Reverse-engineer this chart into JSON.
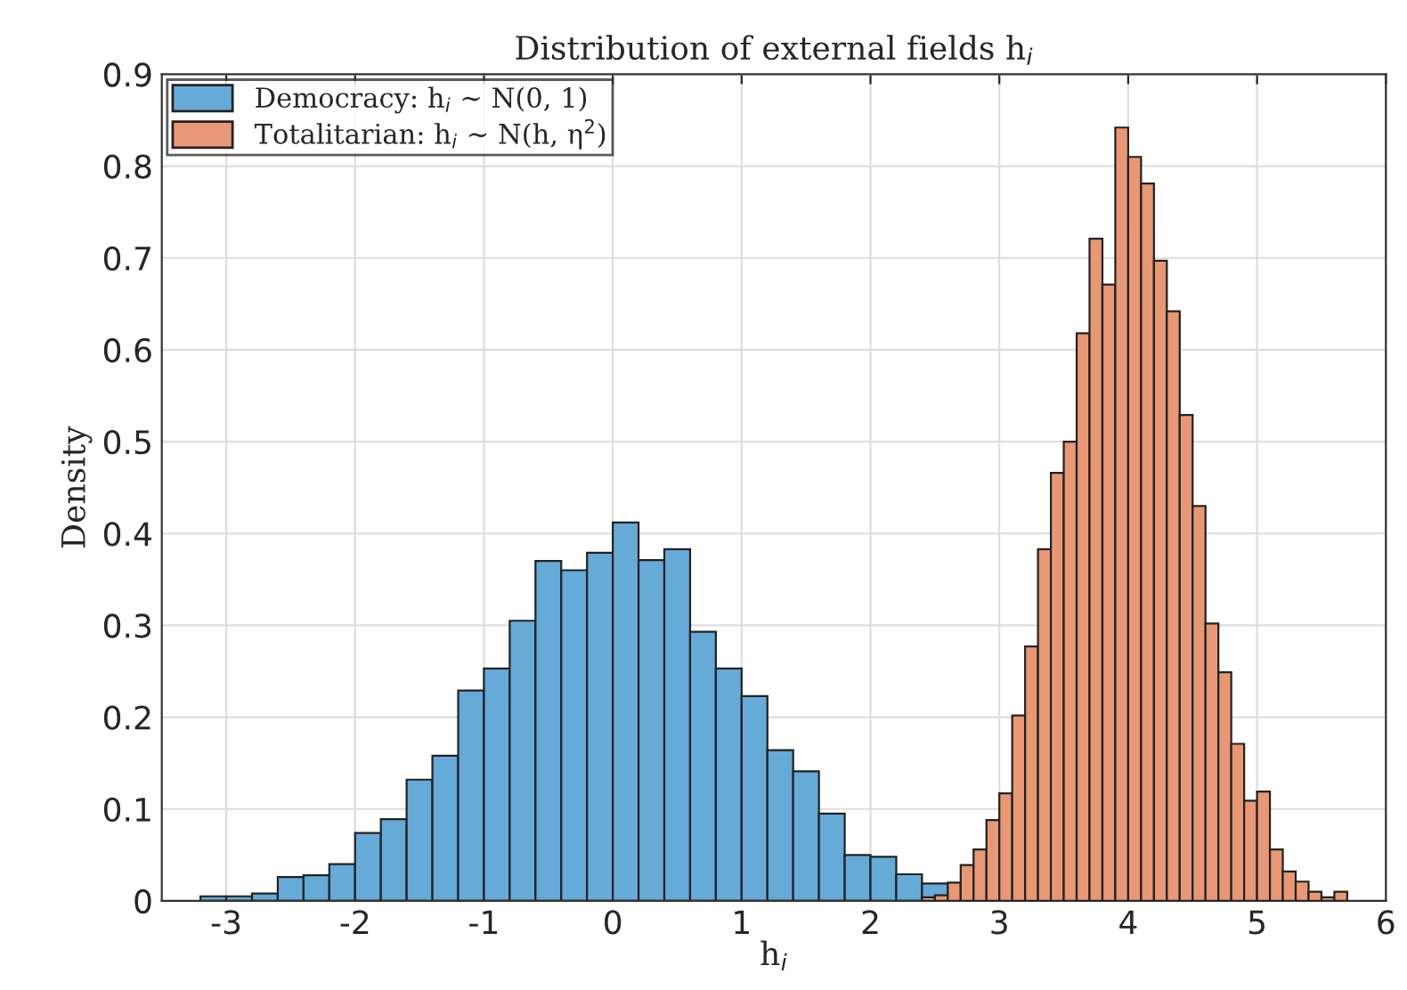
{
  "chart_data": {
    "type": "bar",
    "title": "Distribution of external fields h$_{i}$",
    "xlabel": "h$_{i}$",
    "ylabel": "Density",
    "series": [
      {
        "name": "Democracy: h$_{i}$ ∼ N(0, 1)",
        "color": "#66aad7",
        "x": [
          -3.1,
          -2.9,
          -2.7,
          -2.5,
          -2.3,
          -2.1,
          -1.9,
          -1.7,
          -1.5,
          -1.3,
          -1.1,
          -0.9,
          -0.7,
          -0.5,
          -0.3,
          -0.1,
          0.1,
          0.3,
          0.5,
          0.7,
          0.9,
          1.1,
          1.3,
          1.5,
          1.7,
          1.9,
          2.1,
          2.3,
          2.5
        ],
        "values": [
          0.005,
          0.005,
          0.008,
          0.026,
          0.028,
          0.04,
          0.074,
          0.089,
          0.132,
          0.158,
          0.229,
          0.253,
          0.305,
          0.37,
          0.36,
          0.379,
          0.412,
          0.371,
          0.383,
          0.293,
          0.253,
          0.223,
          0.164,
          0.141,
          0.095,
          0.05,
          0.048,
          0.029,
          0.019
        ]
      },
      {
        "name": "Totalitarian: h$_{i}$ ∼ N(h, η$^{2}$)",
        "color": "#e89875",
        "x": [
          2.45,
          2.55,
          2.65,
          2.75,
          2.85,
          2.95,
          3.05,
          3.15,
          3.25,
          3.35,
          3.45,
          3.55,
          3.65,
          3.75,
          3.85,
          3.95,
          4.05,
          4.15,
          4.25,
          4.35,
          4.45,
          4.55,
          4.65,
          4.75,
          4.85,
          4.95,
          5.05,
          5.15,
          5.25,
          5.35,
          5.45,
          5.55,
          5.65
        ],
        "values": [
          0.004,
          0.006,
          0.02,
          0.039,
          0.056,
          0.088,
          0.117,
          0.202,
          0.277,
          0.383,
          0.466,
          0.5,
          0.618,
          0.721,
          0.671,
          0.842,
          0.81,
          0.781,
          0.697,
          0.642,
          0.529,
          0.43,
          0.302,
          0.249,
          0.171,
          0.109,
          0.119,
          0.056,
          0.032,
          0.021,
          0.01,
          0.004,
          0.01
        ]
      }
    ],
    "xlim": [
      -3.5,
      6
    ],
    "xticks": [
      -3,
      -2,
      -1,
      0,
      1,
      2,
      3,
      4,
      5,
      6
    ],
    "ylim": [
      0,
      0.9
    ],
    "yticks": [
      0,
      0.1,
      0.2,
      0.3,
      0.4,
      0.5,
      0.6,
      0.7,
      0.8,
      0.9
    ],
    "grid": true,
    "legend": "top left"
  }
}
